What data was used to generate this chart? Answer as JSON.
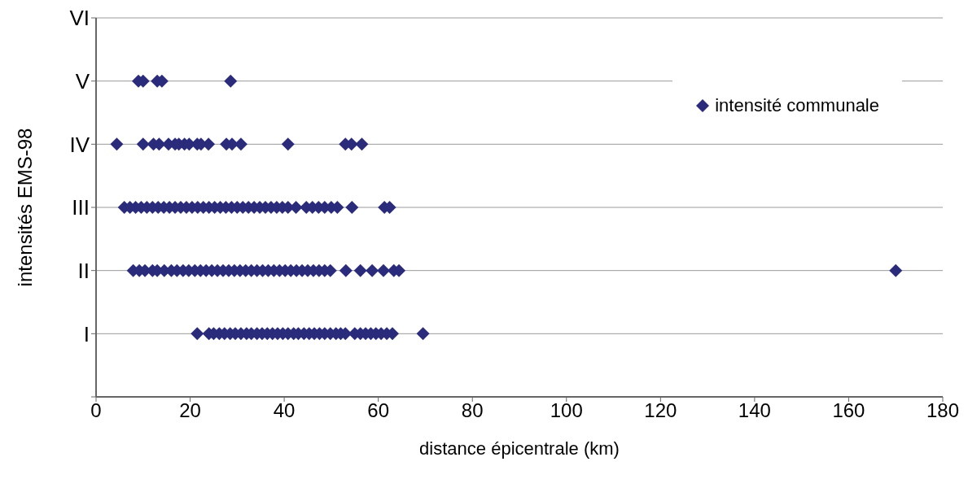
{
  "chart_data": {
    "type": "scatter",
    "xlabel": "distance épicentrale (km)",
    "ylabel": "intensités EMS-98",
    "orientation": "horizontal",
    "categories": [
      "VI",
      "V",
      "IV",
      "III",
      "II",
      "I",
      null
    ],
    "xlim": [
      0,
      180
    ],
    "xticks": [
      0,
      20,
      40,
      60,
      80,
      100,
      120,
      140,
      160,
      180
    ],
    "grid": "y",
    "legend": "top right",
    "marker": "diamond",
    "series": [
      {
        "name": "intensité communale",
        "color": "#2b2b7b",
        "values": [
          9,
          10,
          13,
          14,
          28.6,
          4.4,
          10,
          12.2,
          13.4,
          15.4,
          16.8,
          17.6,
          18.8,
          19.8,
          21.5,
          22.3,
          23.9,
          27.7,
          28.9,
          30.8,
          40.8,
          53,
          54.3,
          56.5,
          6,
          7.2,
          8.4,
          9.6,
          10.8,
          12,
          13.2,
          14.4,
          15.6,
          16.8,
          18,
          19.2,
          20.4,
          21.6,
          22.8,
          24,
          25.2,
          26.4,
          27.6,
          28.8,
          30,
          31.2,
          32.4,
          33.6,
          34.8,
          36,
          37.2,
          38.4,
          39.6,
          40.8,
          42.5,
          44.7,
          46,
          47.3,
          48.6,
          50,
          51.3,
          54.4,
          61.3,
          62.4,
          7.9,
          9.2,
          10.4,
          12,
          13,
          14.5,
          16,
          17.2,
          18.5,
          19.7,
          21,
          22.2,
          23.4,
          24.6,
          25.8,
          27,
          28.2,
          29.4,
          30.6,
          31.8,
          33,
          34.2,
          35.4,
          36.6,
          37.8,
          39,
          40.2,
          41.4,
          42.6,
          43.8,
          45,
          46.2,
          47.4,
          48.6,
          49.8,
          53.1,
          56.2,
          58.7,
          61.1,
          63.3,
          64.4,
          170,
          21.5,
          24,
          25,
          26.2,
          27.3,
          28.5,
          29.6,
          30.8,
          32,
          33,
          34.2,
          35.3,
          36.4,
          37.5,
          38.6,
          39.7,
          40.8,
          42,
          43,
          44.2,
          45.3,
          46.4,
          47.5,
          48.6,
          49.8,
          51,
          52,
          53,
          55,
          56.2,
          57.3,
          58.4,
          59.5,
          60.6,
          61.8,
          63,
          69.5
        ],
        "x": [
          "V",
          "V",
          "V",
          "V",
          "V",
          "IV",
          "IV",
          "IV",
          "IV",
          "IV",
          "IV",
          "IV",
          "IV",
          "IV",
          "IV",
          "IV",
          "IV",
          "IV",
          "IV",
          "IV",
          "IV",
          "IV",
          "IV",
          "IV",
          "III",
          "III",
          "III",
          "III",
          "III",
          "III",
          "III",
          "III",
          "III",
          "III",
          "III",
          "III",
          "III",
          "III",
          "III",
          "III",
          "III",
          "III",
          "III",
          "III",
          "III",
          "III",
          "III",
          "III",
          "III",
          "III",
          "III",
          "III",
          "III",
          "III",
          "III",
          "III",
          "III",
          "III",
          "III",
          "III",
          "III",
          "III",
          "III",
          "III",
          "II",
          "II",
          "II",
          "II",
          "II",
          "II",
          "II",
          "II",
          "II",
          "II",
          "II",
          "II",
          "II",
          "II",
          "II",
          "II",
          "II",
          "II",
          "II",
          "II",
          "II",
          "II",
          "II",
          "II",
          "II",
          "II",
          "II",
          "II",
          "II",
          "II",
          "II",
          "II",
          "II",
          "II",
          "II",
          "II",
          "II",
          "II",
          "II",
          "II",
          "II",
          "II",
          "I",
          "I",
          "I",
          "I",
          "I",
          "I",
          "I",
          "I",
          "I",
          "I",
          "I",
          "I",
          "I",
          "I",
          "I",
          "I",
          "I",
          "I",
          "I",
          "I",
          "I",
          "I",
          "I",
          "I",
          "I",
          "I",
          "I",
          "I",
          "I",
          "I",
          "I",
          "I",
          "I",
          "I",
          "I",
          "I",
          "I"
        ]
      }
    ]
  }
}
